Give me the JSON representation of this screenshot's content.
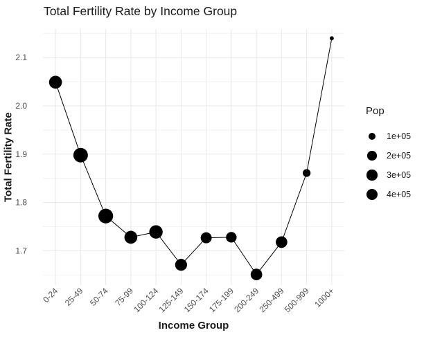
{
  "page": {
    "background": "#ffffff"
  },
  "chart_data": {
    "type": "scatter",
    "mode": "line+points",
    "size_encoding": "Pop",
    "title": "Total Fertility Rate by Income Group",
    "xlabel": "Income Group",
    "ylabel": "Total Fertility Rate",
    "categories": [
      "0-24",
      "25-49",
      "50-74",
      "75-99",
      "100-124",
      "125-149",
      "150-174",
      "175-199",
      "200-249",
      "250-499",
      "500-999",
      "1000+"
    ],
    "series": [
      {
        "name": "Total Fertility Rate",
        "values": [
          2.049,
          1.898,
          1.772,
          1.728,
          1.739,
          1.671,
          1.727,
          1.728,
          1.651,
          1.718,
          1.861,
          2.14
        ]
      },
      {
        "name": "Pop",
        "note": "values estimated from bubble sizes",
        "values": [
          550000,
          760000,
          790000,
          550000,
          610000,
          440000,
          350000,
          310000,
          400000,
          400000,
          110000,
          1000
        ]
      }
    ],
    "ylim": [
      1.629,
      2.159
    ],
    "yticks": [
      1.7,
      1.8,
      1.9,
      2.0,
      2.1
    ],
    "grid": {
      "major": true,
      "minor": true
    },
    "legend": {
      "title": "Pop",
      "position": "right",
      "entries": [
        {
          "label": "1e+05",
          "value": 100000
        },
        {
          "label": "2e+05",
          "value": 200000
        },
        {
          "label": "3e+05",
          "value": 300000
        },
        {
          "label": "4e+05",
          "value": 400000
        }
      ]
    },
    "colors": {
      "point": "#000000",
      "line": "#000000",
      "grid_major": "#e8e8e8",
      "grid_minor": "#f3f3f3",
      "tick_label": "#4d4d4d",
      "text": "#1a1a1a",
      "background": "#ffffff"
    }
  }
}
